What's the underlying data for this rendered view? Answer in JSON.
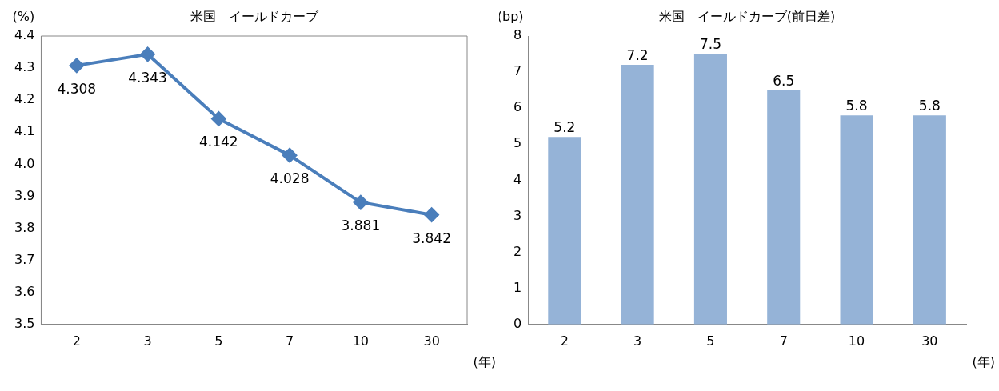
{
  "chart_data": [
    {
      "type": "line",
      "title": "米国　イールドカーブ",
      "ylabel": "(%)",
      "xlabel": "(年)",
      "categories": [
        "2",
        "3",
        "5",
        "7",
        "10",
        "30"
      ],
      "series": [
        {
          "color": "#4a7ebb",
          "values": [
            4.308,
            4.343,
            4.142,
            4.028,
            3.881,
            3.842
          ]
        }
      ],
      "ylim": [
        3.5,
        4.4
      ],
      "yticks": [
        3.5,
        3.6,
        3.7,
        3.8,
        3.9,
        {
          "value": 4,
          "label": "4.0"
        },
        4.1,
        4.2,
        4.3,
        4.4
      ],
      "marker": "diamond",
      "data_labels": true,
      "grid": false,
      "legend": false
    },
    {
      "type": "bar",
      "title": "米国　イールドカーブ(前日差)",
      "ylabel": "(bp)",
      "xlabel": "(年)",
      "categories": [
        "2",
        "3",
        "5",
        "7",
        "10",
        "30"
      ],
      "series": [
        {
          "color": "#95b3d7",
          "values": [
            5.2,
            7.2,
            7.5,
            6.5,
            5.8,
            5.8
          ]
        }
      ],
      "ylim": [
        0,
        8
      ],
      "yticks": [
        0,
        1,
        2,
        3,
        4,
        5,
        6,
        7,
        8
      ],
      "data_labels": true,
      "grid": false,
      "legend": false
    }
  ]
}
